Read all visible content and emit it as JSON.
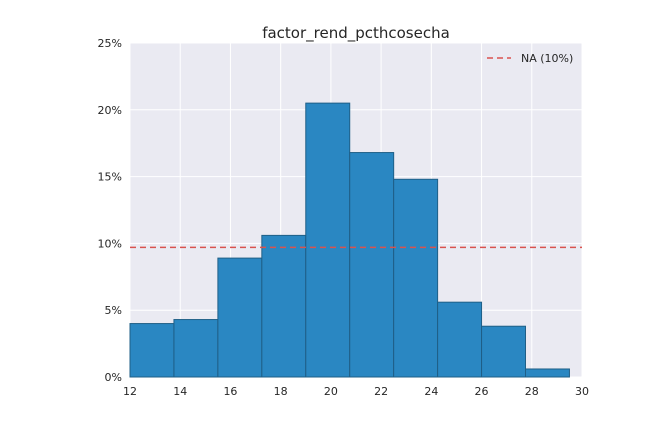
{
  "chart_data": {
    "type": "bar",
    "title": "factor_rend_pcthcosecha",
    "xlabel": "",
    "ylabel": "",
    "xlim": [
      12,
      30
    ],
    "ylim": [
      0,
      25
    ],
    "x_ticks": [
      12,
      14,
      16,
      18,
      20,
      22,
      24,
      26,
      28,
      30
    ],
    "y_ticks": [
      0,
      5,
      10,
      15,
      20,
      25
    ],
    "y_tick_labels": [
      "0%",
      "5%",
      "10%",
      "15%",
      "20%",
      "25%"
    ],
    "bins": [
      {
        "start": 12.0,
        "end": 13.75,
        "value": 4.0
      },
      {
        "start": 13.75,
        "end": 15.5,
        "value": 4.3
      },
      {
        "start": 15.5,
        "end": 17.25,
        "value": 8.9
      },
      {
        "start": 17.25,
        "end": 19.0,
        "value": 10.6
      },
      {
        "start": 19.0,
        "end": 20.75,
        "value": 20.5
      },
      {
        "start": 20.75,
        "end": 22.5,
        "value": 16.8
      },
      {
        "start": 22.5,
        "end": 24.25,
        "value": 14.8
      },
      {
        "start": 24.25,
        "end": 26.0,
        "value": 5.6
      },
      {
        "start": 26.0,
        "end": 27.75,
        "value": 3.8
      },
      {
        "start": 27.75,
        "end": 29.5,
        "value": 0.6
      }
    ],
    "reference_line": {
      "label": "NA (10%)",
      "value": 9.7,
      "style": "dashed"
    },
    "legend_position": "top-right",
    "grid": true,
    "colors": {
      "bar": "#2a87c2",
      "bar_edge": "#1f5f87",
      "reference_line": "#d9534f",
      "plot_bg": "#eaeaf2",
      "grid": "#ffffff"
    }
  }
}
